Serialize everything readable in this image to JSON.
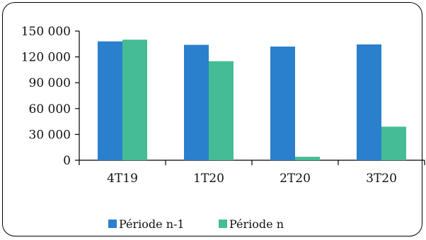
{
  "chart_data": {
    "type": "bar",
    "categories": [
      "4T19",
      "1T20",
      "2T20",
      "3T20"
    ],
    "series": [
      {
        "name": "Période n-1",
        "color": "#2A80CC",
        "values": [
          138000,
          134000,
          132000,
          134500
        ]
      },
      {
        "name": "Période n",
        "color": "#45BC96",
        "values": [
          140000,
          115000,
          4000,
          39000
        ]
      }
    ],
    "yticks": [
      "150 000",
      "120 000",
      "90 000",
      "60 000",
      "30 000",
      "0"
    ],
    "ytick_values": [
      150000,
      120000,
      90000,
      60000,
      30000,
      0
    ],
    "ylim": [
      0,
      150000
    ],
    "title": "",
    "xlabel": "",
    "ylabel": "",
    "grid": false,
    "legend_position": "bottom"
  }
}
